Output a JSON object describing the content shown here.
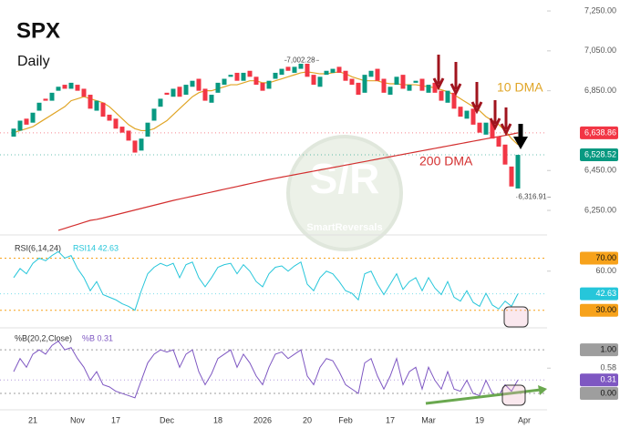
{
  "chart_data": [
    {
      "type": "candlestick",
      "title": "SPX",
      "subtitle": "Daily",
      "categories": [
        null,
        null,
        null,
        "21",
        null,
        null,
        null,
        null,
        null,
        null,
        "Nov",
        null,
        null,
        null,
        null,
        null,
        "17",
        null,
        null,
        null,
        null,
        null,
        null,
        null,
        "Dec",
        null,
        null,
        null,
        null,
        null,
        null,
        null,
        "18",
        null,
        null,
        null,
        null,
        null,
        null,
        "2026",
        null,
        null,
        null,
        null,
        null,
        null,
        "20",
        null,
        null,
        null,
        null,
        null,
        "Feb",
        null,
        null,
        null,
        null,
        null,
        null,
        "17",
        null,
        null,
        null,
        null,
        null,
        "Mar",
        null,
        null,
        null,
        null,
        null,
        null,
        null,
        "19",
        null,
        null,
        null,
        null,
        null,
        null,
        "Apr"
      ],
      "open": [
        6620,
        6650,
        6710,
        6690,
        6750,
        6810,
        6800,
        6850,
        6880,
        6860,
        6880,
        6860,
        6830,
        6750,
        6790,
        6730,
        6710,
        6670,
        6650,
        6600,
        6550,
        6620,
        6700,
        6770,
        6840,
        6820,
        6870,
        6830,
        6870,
        6910,
        6860,
        6790,
        6840,
        6880,
        6920,
        6940,
        6900,
        6950,
        6920,
        6890,
        6860,
        6910,
        6930,
        6970,
        6940,
        6960,
        7000,
        6930,
        6870,
        6930,
        6940,
        6970,
        6950,
        6910,
        6890,
        6840,
        6920,
        6960,
        6910,
        6830,
        6880,
        6930,
        6850,
        6890,
        6910,
        6840,
        6890,
        6850,
        6790,
        6840,
        6770,
        6710,
        6760,
        6690,
        6630,
        6700,
        6620,
        6580,
        6470,
        6360,
        null
      ],
      "close": [
        6660,
        6700,
        6680,
        6740,
        6790,
        6800,
        6840,
        6870,
        6860,
        6890,
        6850,
        6820,
        6760,
        6800,
        6720,
        6700,
        6660,
        6640,
        6600,
        6540,
        6610,
        6690,
        6760,
        6810,
        6830,
        6860,
        6820,
        6880,
        6900,
        6850,
        6800,
        6830,
        6890,
        6910,
        6930,
        6900,
        6940,
        6920,
        6880,
        6850,
        6900,
        6940,
        6960,
        6950,
        6970,
        6990,
        6920,
        6880,
        6920,
        6950,
        6960,
        6940,
        6900,
        6880,
        6830,
        6930,
        6950,
        6900,
        6840,
        6870,
        6920,
        6860,
        6880,
        6900,
        6850,
        6880,
        6840,
        6800,
        6850,
        6760,
        6720,
        6750,
        6680,
        6640,
        6690,
        6610,
        6570,
        6480,
        6370,
        6528.52,
        null
      ],
      "up_color": "#089981",
      "down_color": "#f23645",
      "overlays": [
        {
          "name": "10 DMA",
          "color": "#e0a526",
          "values": [
            6640,
            6650,
            6660,
            6670,
            6690,
            6710,
            6730,
            6750,
            6770,
            6800,
            6810,
            6820,
            6810,
            6800,
            6790,
            6770,
            6740,
            6710,
            6680,
            6660,
            6650,
            6650,
            6660,
            6680,
            6700,
            6730,
            6760,
            6790,
            6820,
            6840,
            6850,
            6850,
            6860,
            6870,
            6880,
            6880,
            6890,
            6900,
            6900,
            6890,
            6890,
            6900,
            6910,
            6920,
            6930,
            6940,
            6945,
            6940,
            6935,
            6935,
            6940,
            6945,
            6935,
            6920,
            6910,
            6900,
            6900,
            6900,
            6890,
            6885,
            6885,
            6880,
            6880,
            6880,
            6875,
            6870,
            6865,
            6855,
            6845,
            6830,
            6810,
            6790,
            6770,
            6750,
            6720,
            6700,
            6680,
            6650,
            6610,
            6580,
            null
          ]
        },
        {
          "name": "200 DMA",
          "color": "#d32f2f",
          "values": [
            null,
            null,
            null,
            null,
            null,
            null,
            null,
            6150,
            6160,
            6170,
            6180,
            6190,
            6200,
            6205,
            6212,
            6220,
            6228,
            6236,
            6244,
            6252,
            6260,
            6268,
            6276,
            6284,
            6292,
            6300,
            6307,
            6314,
            6321,
            6328,
            6335,
            6342,
            6349,
            6356,
            6363,
            6370,
            6377,
            6384,
            6391,
            6398,
            6405,
            6411,
            6417,
            6423,
            6429,
            6435,
            6441,
            6447,
            6453,
            6459,
            6465,
            6471,
            6477,
            6483,
            6489,
            6495,
            6501,
            6507,
            6513,
            6519,
            6525,
            6531,
            6537,
            6543,
            6549,
            6555,
            6561,
            6567,
            6573,
            6579,
            6585,
            6591,
            6597,
            6603,
            6609,
            6615,
            6620,
            6626,
            6632,
            6638.86,
            null
          ]
        }
      ],
      "ylim": [
        6127,
        7305
      ],
      "yticks": [
        {
          "value": 7250,
          "label": "7,250.00"
        },
        {
          "value": 7050,
          "label": "7,050.00"
        },
        {
          "value": 6850,
          "label": "6,850.00"
        },
        {
          "value": 6450,
          "label": "6,450.00"
        },
        {
          "value": 6250,
          "label": "6,250.00"
        }
      ],
      "price_tags": [
        {
          "value": 6638.86,
          "label": "6,638.86",
          "color": "#f23645"
        },
        {
          "value": 6528.52,
          "label": "6,528.52",
          "color": "#089981"
        }
      ],
      "annotations": [
        {
          "value": 7002.28,
          "label": "7,002.28"
        },
        {
          "value": 6316.91,
          "label": "6,316.91"
        }
      ],
      "watermark": {
        "logo": "S/R",
        "brand": "SmartReversals"
      }
    },
    {
      "type": "line",
      "title": "RSI(6,14,24)",
      "legend": "RSI14 42.63",
      "color": "#26c6da",
      "values": [
        55,
        62,
        58,
        66,
        70,
        68,
        72,
        75,
        70,
        72,
        62,
        55,
        45,
        52,
        42,
        40,
        38,
        35,
        33,
        30,
        45,
        58,
        63,
        66,
        64,
        66,
        55,
        65,
        67,
        55,
        48,
        55,
        63,
        65,
        66,
        58,
        65,
        60,
        52,
        48,
        58,
        63,
        64,
        60,
        64,
        67,
        50,
        45,
        55,
        60,
        58,
        52,
        45,
        43,
        38,
        58,
        60,
        50,
        42,
        50,
        58,
        46,
        52,
        55,
        45,
        55,
        47,
        42,
        52,
        40,
        37,
        45,
        36,
        33,
        43,
        34,
        31,
        37,
        33,
        42.63,
        null
      ],
      "ylim": [
        20,
        85
      ],
      "yticks": [
        {
          "value": 70,
          "label": "70.00",
          "color": "#f7a21b"
        },
        {
          "value": 60,
          "label": "60.00"
        },
        {
          "value": 30,
          "label": "30.00",
          "color": "#f7a21b"
        }
      ],
      "price_tags": [
        {
          "value": 42.63,
          "label": "42.63",
          "color": "#26c6da"
        }
      ]
    },
    {
      "type": "line",
      "title": "%B(20,2,Close)",
      "legend": "%B 0.31",
      "color": "#7e57c2",
      "values": [
        0.5,
        0.8,
        0.6,
        0.9,
        1.0,
        0.9,
        1.1,
        1.2,
        1.0,
        1.05,
        0.8,
        0.6,
        0.3,
        0.5,
        0.2,
        0.15,
        0.05,
        0.0,
        -0.05,
        -0.1,
        0.3,
        0.7,
        0.9,
        1.0,
        0.95,
        1.0,
        0.6,
        0.9,
        1.0,
        0.5,
        0.2,
        0.45,
        0.8,
        0.9,
        1.0,
        0.6,
        0.9,
        0.7,
        0.4,
        0.2,
        0.6,
        0.9,
        0.95,
        0.8,
        0.9,
        1.0,
        0.4,
        0.2,
        0.6,
        0.8,
        0.75,
        0.5,
        0.2,
        0.1,
        0.0,
        0.7,
        0.8,
        0.4,
        0.1,
        0.4,
        0.8,
        0.2,
        0.5,
        0.6,
        0.1,
        0.6,
        0.3,
        0.1,
        0.5,
        0.1,
        0.05,
        0.3,
        0.0,
        -0.05,
        0.3,
        0.0,
        -0.05,
        0.2,
        0.05,
        0.31,
        null
      ],
      "ylim": [
        -0.375,
        1.4
      ],
      "yticks": [
        {
          "value": 1,
          "label": "1.00",
          "color": "#9e9e9e"
        },
        {
          "value": 0.58,
          "label": "0.58"
        },
        {
          "value": 0,
          "label": "0.00",
          "color": "#9e9e9e"
        }
      ],
      "price_tags": [
        {
          "value": 0.31,
          "label": "0.31",
          "color": "#7e57c2"
        }
      ]
    }
  ]
}
